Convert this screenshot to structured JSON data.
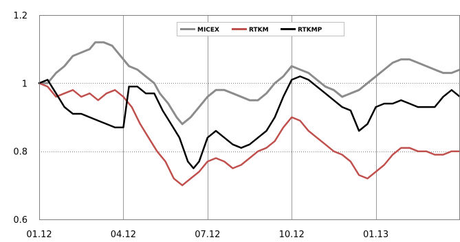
{
  "chart_data": {
    "type": "line",
    "ylim": [
      0.6,
      1.2
    ],
    "yticks": [
      "0.6",
      "0.8",
      "1",
      "1.2"
    ],
    "xlim": [
      0,
      15
    ],
    "xticks": [
      {
        "x": 0,
        "label": "01.12"
      },
      {
        "x": 3,
        "label": "04.12"
      },
      {
        "x": 6,
        "label": "07.12"
      },
      {
        "x": 9,
        "label": "10.12"
      },
      {
        "x": 12,
        "label": "01.13"
      }
    ],
    "grid": {
      "vertical": true,
      "horizontal_at": [
        0.8,
        1.0
      ],
      "horizontal_style": "dotted"
    },
    "legend": {
      "placement": "top-center"
    },
    "series": [
      {
        "name": "MICEX",
        "color": "#8c8c8c",
        "points": [
          [
            0,
            1.0
          ],
          [
            0.3,
            1.0
          ],
          [
            0.6,
            1.03
          ],
          [
            0.9,
            1.05
          ],
          [
            1.2,
            1.08
          ],
          [
            1.5,
            1.09
          ],
          [
            1.8,
            1.1
          ],
          [
            2.0,
            1.12
          ],
          [
            2.3,
            1.12
          ],
          [
            2.6,
            1.11
          ],
          [
            2.9,
            1.08
          ],
          [
            3.2,
            1.05
          ],
          [
            3.5,
            1.04
          ],
          [
            3.8,
            1.02
          ],
          [
            4.1,
            1.0
          ],
          [
            4.3,
            0.97
          ],
          [
            4.6,
            0.94
          ],
          [
            4.9,
            0.9
          ],
          [
            5.1,
            0.88
          ],
          [
            5.4,
            0.9
          ],
          [
            5.7,
            0.93
          ],
          [
            6.0,
            0.96
          ],
          [
            6.3,
            0.98
          ],
          [
            6.6,
            0.98
          ],
          [
            6.9,
            0.97
          ],
          [
            7.2,
            0.96
          ],
          [
            7.5,
            0.95
          ],
          [
            7.8,
            0.95
          ],
          [
            8.1,
            0.97
          ],
          [
            8.4,
            1.0
          ],
          [
            8.7,
            1.02
          ],
          [
            9.0,
            1.05
          ],
          [
            9.3,
            1.04
          ],
          [
            9.6,
            1.03
          ],
          [
            9.9,
            1.01
          ],
          [
            10.2,
            0.99
          ],
          [
            10.5,
            0.98
          ],
          [
            10.8,
            0.96
          ],
          [
            11.1,
            0.97
          ],
          [
            11.4,
            0.98
          ],
          [
            11.7,
            1.0
          ],
          [
            12.0,
            1.02
          ],
          [
            12.3,
            1.04
          ],
          [
            12.6,
            1.06
          ],
          [
            12.9,
            1.07
          ],
          [
            13.2,
            1.07
          ],
          [
            13.5,
            1.06
          ],
          [
            13.8,
            1.05
          ],
          [
            14.1,
            1.04
          ],
          [
            14.4,
            1.03
          ],
          [
            14.7,
            1.03
          ],
          [
            15.0,
            1.04
          ]
        ]
      },
      {
        "name": "RTKM",
        "color": "#c0504d",
        "points": [
          [
            0,
            1.0
          ],
          [
            0.3,
            0.99
          ],
          [
            0.6,
            0.96
          ],
          [
            0.9,
            0.97
          ],
          [
            1.2,
            0.98
          ],
          [
            1.5,
            0.96
          ],
          [
            1.8,
            0.97
          ],
          [
            2.1,
            0.95
          ],
          [
            2.4,
            0.97
          ],
          [
            2.7,
            0.98
          ],
          [
            3.0,
            0.96
          ],
          [
            3.3,
            0.93
          ],
          [
            3.6,
            0.88
          ],
          [
            3.9,
            0.84
          ],
          [
            4.2,
            0.8
          ],
          [
            4.5,
            0.77
          ],
          [
            4.8,
            0.72
          ],
          [
            5.1,
            0.7
          ],
          [
            5.4,
            0.72
          ],
          [
            5.7,
            0.74
          ],
          [
            6.0,
            0.77
          ],
          [
            6.3,
            0.78
          ],
          [
            6.6,
            0.77
          ],
          [
            6.9,
            0.75
          ],
          [
            7.2,
            0.76
          ],
          [
            7.5,
            0.78
          ],
          [
            7.8,
            0.8
          ],
          [
            8.1,
            0.81
          ],
          [
            8.4,
            0.83
          ],
          [
            8.7,
            0.87
          ],
          [
            9.0,
            0.9
          ],
          [
            9.3,
            0.89
          ],
          [
            9.6,
            0.86
          ],
          [
            9.9,
            0.84
          ],
          [
            10.2,
            0.82
          ],
          [
            10.5,
            0.8
          ],
          [
            10.8,
            0.79
          ],
          [
            11.1,
            0.77
          ],
          [
            11.4,
            0.73
          ],
          [
            11.7,
            0.72
          ],
          [
            12.0,
            0.74
          ],
          [
            12.3,
            0.76
          ],
          [
            12.6,
            0.79
          ],
          [
            12.9,
            0.81
          ],
          [
            13.2,
            0.81
          ],
          [
            13.5,
            0.8
          ],
          [
            13.8,
            0.8
          ],
          [
            14.1,
            0.79
          ],
          [
            14.4,
            0.79
          ],
          [
            14.7,
            0.8
          ],
          [
            15.0,
            0.8
          ]
        ]
      },
      {
        "name": "RTKMP",
        "color": "#000000",
        "points": [
          [
            0,
            1.0
          ],
          [
            0.3,
            1.01
          ],
          [
            0.6,
            0.97
          ],
          [
            0.9,
            0.93
          ],
          [
            1.2,
            0.91
          ],
          [
            1.5,
            0.91
          ],
          [
            1.8,
            0.9
          ],
          [
            2.1,
            0.89
          ],
          [
            2.4,
            0.88
          ],
          [
            2.7,
            0.87
          ],
          [
            3.0,
            0.87
          ],
          [
            3.2,
            0.99
          ],
          [
            3.5,
            0.99
          ],
          [
            3.8,
            0.97
          ],
          [
            4.1,
            0.97
          ],
          [
            4.4,
            0.92
          ],
          [
            4.7,
            0.88
          ],
          [
            5.0,
            0.84
          ],
          [
            5.3,
            0.77
          ],
          [
            5.5,
            0.75
          ],
          [
            5.7,
            0.77
          ],
          [
            6.0,
            0.84
          ],
          [
            6.3,
            0.86
          ],
          [
            6.6,
            0.84
          ],
          [
            6.9,
            0.82
          ],
          [
            7.2,
            0.81
          ],
          [
            7.5,
            0.82
          ],
          [
            7.8,
            0.84
          ],
          [
            8.1,
            0.86
          ],
          [
            8.4,
            0.9
          ],
          [
            8.7,
            0.96
          ],
          [
            9.0,
            1.01
          ],
          [
            9.3,
            1.02
          ],
          [
            9.6,
            1.01
          ],
          [
            9.9,
            0.99
          ],
          [
            10.2,
            0.97
          ],
          [
            10.5,
            0.95
          ],
          [
            10.8,
            0.93
          ],
          [
            11.1,
            0.92
          ],
          [
            11.4,
            0.86
          ],
          [
            11.7,
            0.88
          ],
          [
            12.0,
            0.93
          ],
          [
            12.3,
            0.94
          ],
          [
            12.6,
            0.94
          ],
          [
            12.9,
            0.95
          ],
          [
            13.2,
            0.94
          ],
          [
            13.5,
            0.93
          ],
          [
            13.8,
            0.93
          ],
          [
            14.1,
            0.93
          ],
          [
            14.4,
            0.96
          ],
          [
            14.7,
            0.98
          ],
          [
            15.0,
            0.96
          ]
        ]
      }
    ]
  }
}
